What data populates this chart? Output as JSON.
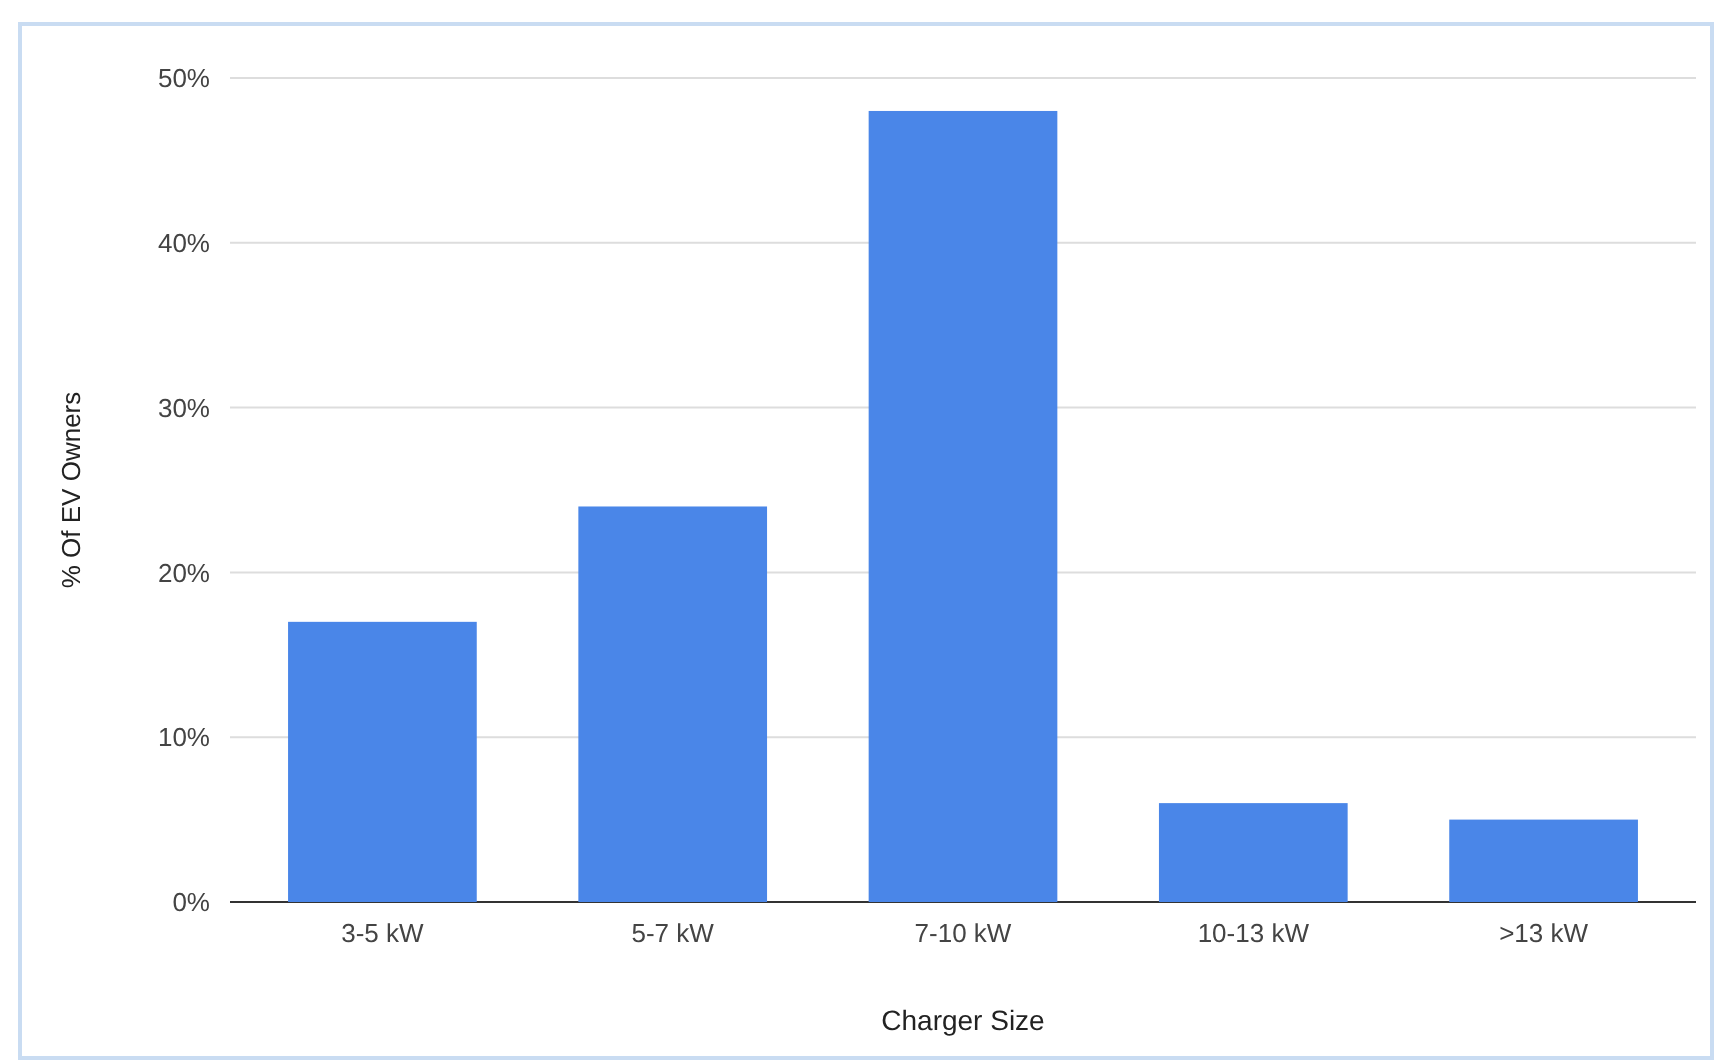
{
  "chart_data": {
    "type": "bar",
    "xlabel": "Charger Size",
    "ylabel": "% Of EV Owners",
    "categories": [
      "3-5 kW",
      "5-7 kW",
      "7-10 kW",
      "10-13 kW",
      ">13 kW"
    ],
    "values": [
      17,
      24,
      48,
      6,
      5
    ],
    "color": "#4a86e8",
    "ylim": [
      0,
      50
    ],
    "yticks": [
      {
        "value": 0,
        "label": "0%"
      },
      {
        "value": 10,
        "label": "10%"
      },
      {
        "value": 20,
        "label": "20%"
      },
      {
        "value": 30,
        "label": "30%"
      },
      {
        "value": 40,
        "label": "40%"
      },
      {
        "value": 50,
        "label": "50%"
      }
    ],
    "grid": true
  }
}
